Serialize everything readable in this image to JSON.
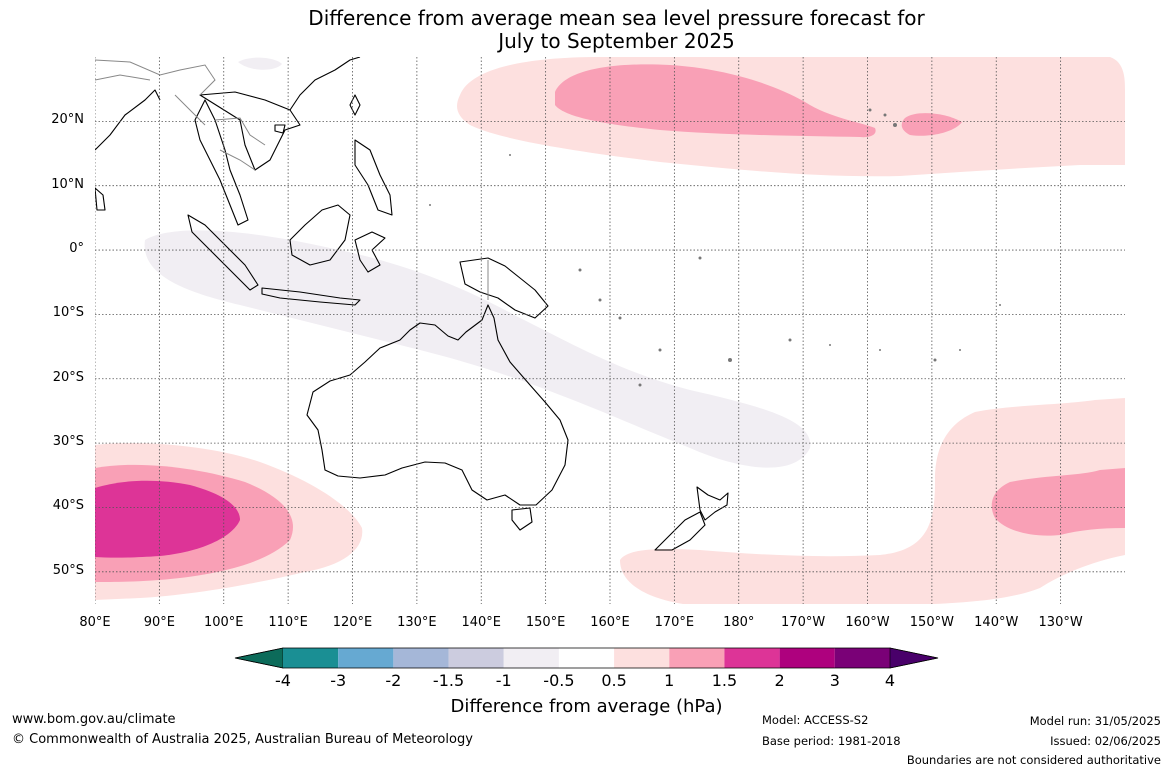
{
  "title_line1": "Difference from average mean sea level pressure forecast for",
  "title_line2": "July to September 2025",
  "map": {
    "projection": "equirectangular",
    "lon_range": [
      80,
      240
    ],
    "lat_range": [
      -55,
      30
    ],
    "grid": true,
    "lat_ticks": [
      {
        "value": 20,
        "label": "20°N"
      },
      {
        "value": 10,
        "label": "10°N"
      },
      {
        "value": 0,
        "label": "0°"
      },
      {
        "value": -10,
        "label": "10°S"
      },
      {
        "value": -20,
        "label": "20°S"
      },
      {
        "value": -30,
        "label": "30°S"
      },
      {
        "value": -40,
        "label": "40°S"
      },
      {
        "value": -50,
        "label": "50°S"
      }
    ],
    "lon_ticks": [
      {
        "value": 80,
        "label": "80°E"
      },
      {
        "value": 90,
        "label": "90°E"
      },
      {
        "value": 100,
        "label": "100°E"
      },
      {
        "value": 110,
        "label": "110°E"
      },
      {
        "value": 120,
        "label": "120°E"
      },
      {
        "value": 130,
        "label": "130°E"
      },
      {
        "value": 140,
        "label": "140°E"
      },
      {
        "value": 150,
        "label": "150°E"
      },
      {
        "value": 160,
        "label": "160°E"
      },
      {
        "value": 170,
        "label": "170°E"
      },
      {
        "value": 180,
        "label": "180°"
      },
      {
        "value": 190,
        "label": "170°W"
      },
      {
        "value": 200,
        "label": "160°W"
      },
      {
        "value": 210,
        "label": "150°W"
      },
      {
        "value": 220,
        "label": "140°W"
      },
      {
        "value": 230,
        "label": "130°W"
      }
    ]
  },
  "colorbar": {
    "label": "Difference from average (hPa)",
    "ticks": [
      "-4",
      "-3",
      "-2",
      "-1.5",
      "-1",
      "-0.5",
      "0.5",
      "1",
      "1.5",
      "2",
      "3",
      "4"
    ],
    "colors": [
      "#0c6b5a",
      "#1a8f94",
      "#66a9d2",
      "#a5b7d8",
      "#ccccdf",
      "#f1eef3",
      "#ffffff",
      "#fde0df",
      "#f9a0b6",
      "#dd3497",
      "#ae017e",
      "#7a0177",
      "#49006a"
    ]
  },
  "footer": {
    "website": "www.bom.gov.au/climate",
    "copyright": "© Commonwealth of Australia 2025, Australian Bureau of Meteorology",
    "model": "Model: ACCESS-S2",
    "base_period": "Base period: 1981-2018",
    "model_run": "Model run: 31/05/2025",
    "issued": "Issued: 02/06/2025",
    "disclaimer": "Boundaries are not considered authoritative"
  }
}
